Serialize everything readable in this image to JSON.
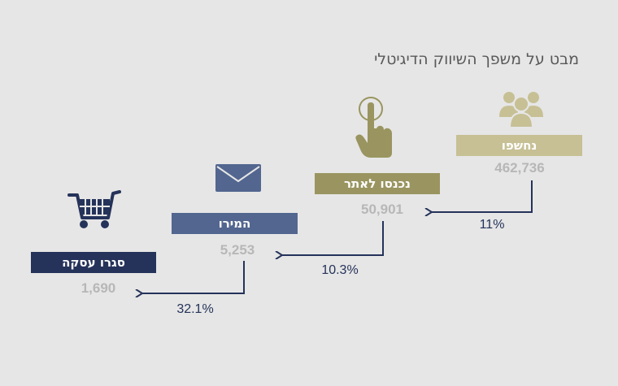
{
  "title": "מבט על משפך השיווק הדיגיטלי",
  "stages": [
    {
      "label": "נחשפו",
      "count": "462,736",
      "color": "#c7c095",
      "icon": "people-icon"
    },
    {
      "label": "נכנסו לאתר",
      "count": "50,901",
      "color": "#9a9560",
      "icon": "touch-icon"
    },
    {
      "label": "המירו",
      "count": "5,253",
      "color": "#52668f",
      "icon": "envelope-icon"
    },
    {
      "label": "סגרו עסקה",
      "count": "1,690",
      "color": "#25335a",
      "icon": "cart-icon"
    }
  ],
  "conversions": [
    "11%",
    "10.3%",
    "32.1%"
  ],
  "arrow_color": "#25335a"
}
